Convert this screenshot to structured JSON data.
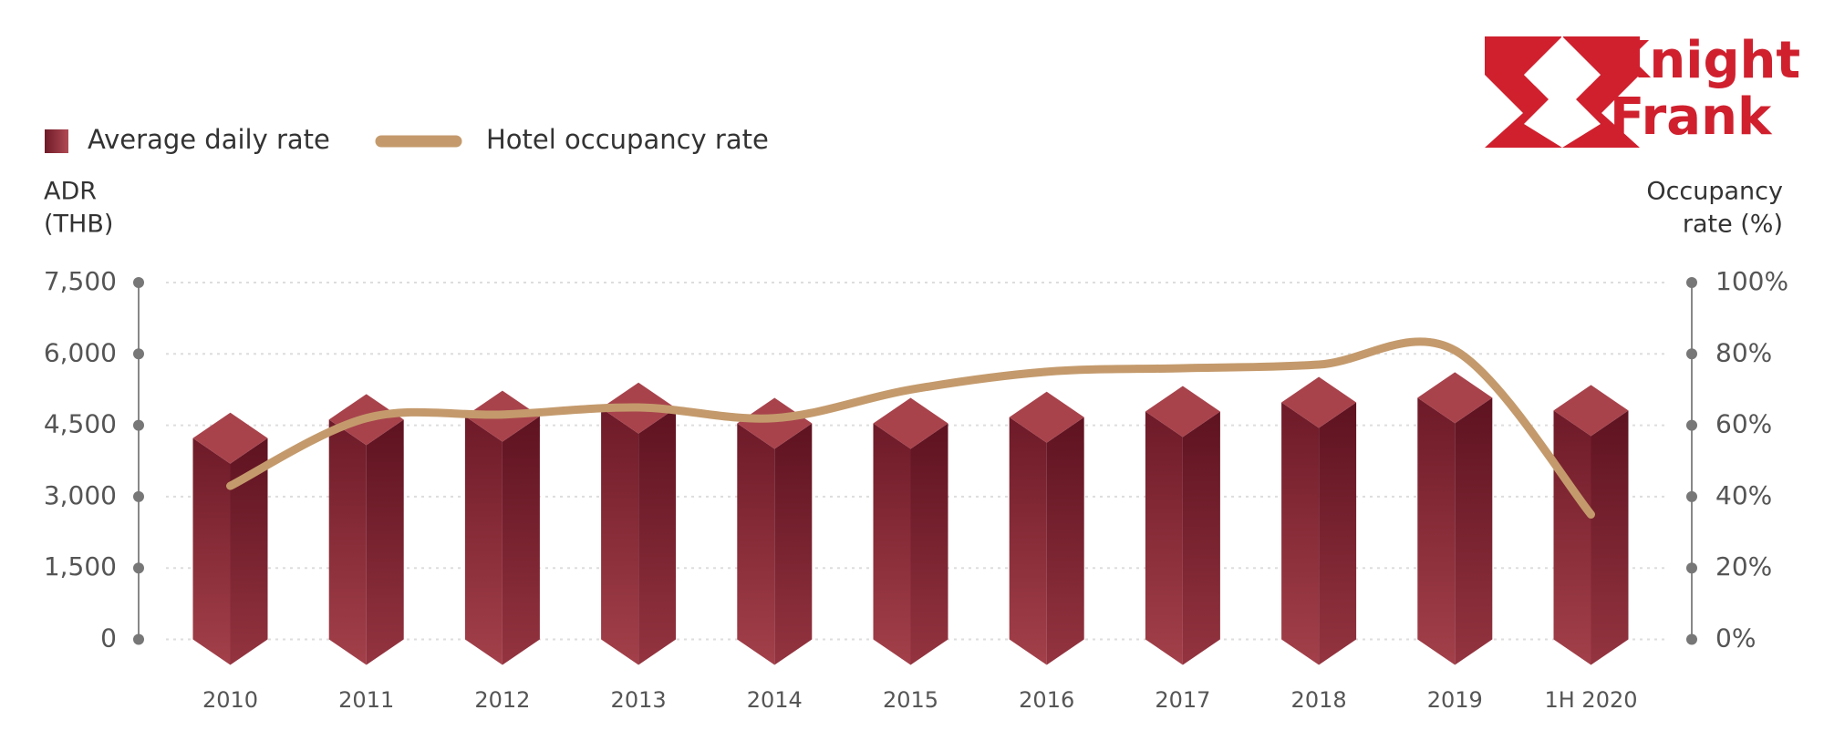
{
  "chart_data": {
    "type": "bar_line",
    "brand": [
      "Knight",
      "Frank"
    ],
    "y_label": [
      "ADR",
      "(THB)"
    ],
    "y2_label": [
      "Occupancy",
      "rate (%)"
    ],
    "categories": [
      "2010",
      "2011",
      "2012",
      "2013",
      "2014",
      "2015",
      "2016",
      "2017",
      "2018",
      "2019",
      "1H 2020"
    ],
    "series": [
      {
        "name": "Average daily rate",
        "type": "bar",
        "color": "#8b2a35",
        "values": [
          4230,
          4620,
          4690,
          4860,
          4540,
          4540,
          4670,
          4790,
          4980,
          5080,
          4810
        ]
      },
      {
        "name": "Hotel occupancy rate",
        "type": "line",
        "axis": "y2",
        "color": "#c49a6c",
        "values": [
          43,
          62,
          63,
          65,
          62,
          70,
          75,
          76,
          77,
          81,
          35
        ]
      }
    ],
    "ylim": [
      0,
      7500
    ],
    "yticks": [
      0,
      {
        "value": 1500,
        "label": "1,500"
      },
      {
        "value": 3000,
        "label": "3,000"
      },
      {
        "value": 4500,
        "label": "4,500"
      },
      {
        "value": 6000,
        "label": "6,000"
      },
      {
        "value": 7500,
        "label": "7,500"
      }
    ],
    "y2lim": [
      0,
      100
    ],
    "y2ticks": [
      {
        "value": 0,
        "label": "0%"
      },
      {
        "value": 20,
        "label": "20%"
      },
      {
        "value": 40,
        "label": "40%"
      },
      {
        "value": 60,
        "label": "60%"
      },
      {
        "value": 80,
        "label": "80%"
      },
      {
        "value": 100,
        "label": "100%"
      }
    ],
    "grid": true
  }
}
